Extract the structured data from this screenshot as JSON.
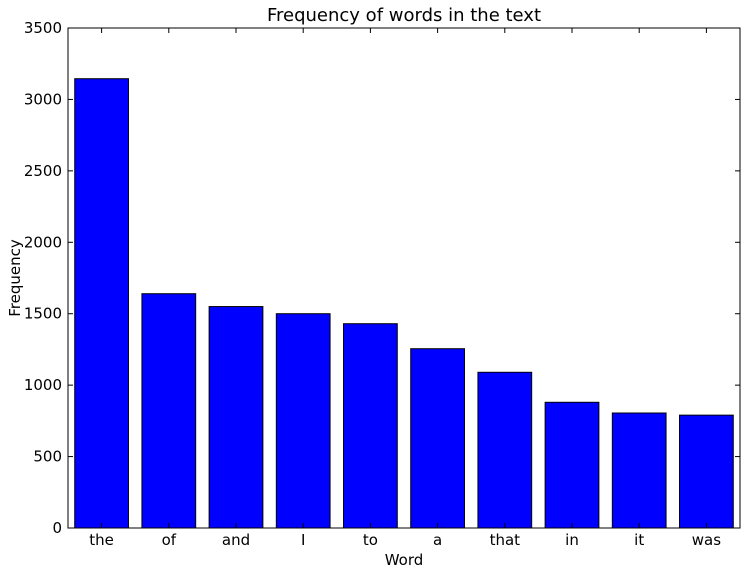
{
  "chart_data": {
    "type": "bar",
    "title": "Frequency of words in the text",
    "xlabel": "Word",
    "ylabel": "Frequency",
    "categories": [
      "the",
      "of",
      "and",
      "I",
      "to",
      "a",
      "that",
      "in",
      "it",
      "was"
    ],
    "values": [
      3145,
      1640,
      1550,
      1500,
      1430,
      1255,
      1090,
      880,
      805,
      790
    ],
    "ylim": [
      0,
      3500
    ],
    "yticks": [
      0,
      500,
      1000,
      1500,
      2000,
      2500,
      3000,
      3500
    ],
    "grid": false,
    "legend": "none",
    "bar_color": "#0000ff",
    "edge_color": "#000000"
  }
}
